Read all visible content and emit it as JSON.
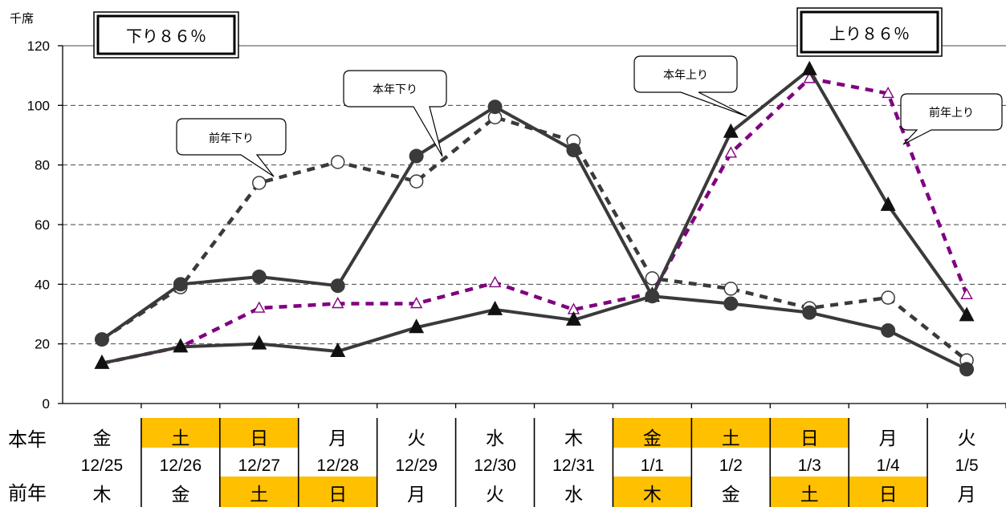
{
  "chart_data": {
    "type": "line",
    "y_unit": "千席",
    "ylim": [
      0,
      120
    ],
    "yticks": [
      0,
      20,
      40,
      60,
      80,
      100,
      120
    ],
    "grid": "horizontal dashed",
    "categories": [
      "12/25",
      "12/26",
      "12/27",
      "12/28",
      "12/29",
      "12/30",
      "12/31",
      "1/1",
      "1/2",
      "1/3",
      "1/4",
      "1/5"
    ],
    "series": [
      {
        "name": "本年下り",
        "style": "solid",
        "marker": "filled-circle",
        "color": "#3a3a3a",
        "values": [
          21.5,
          40,
          42.5,
          39.5,
          83,
          99.5,
          85,
          36,
          33.5,
          30.5,
          24.5,
          11.5
        ]
      },
      {
        "name": "前年下り",
        "style": "dashed",
        "marker": "open-circle",
        "color": "#3a3a3a",
        "values": [
          21.5,
          39,
          74,
          81,
          74.5,
          96,
          88,
          42,
          38.5,
          32,
          35.5,
          14.5
        ]
      },
      {
        "name": "本年上り",
        "style": "solid",
        "marker": "filled-triangle",
        "color": "#3a3a3a",
        "values": [
          13.5,
          19,
          20,
          17.5,
          25.5,
          31.5,
          28,
          36,
          91,
          112,
          66.5,
          29.5
        ]
      },
      {
        "name": "前年上り",
        "style": "dashed",
        "marker": "open-triangle",
        "color": "#800080",
        "values": [
          13.5,
          19,
          32,
          33.5,
          33.5,
          40.5,
          31.5,
          37,
          84,
          109,
          104,
          36.5
        ]
      }
    ],
    "summary_boxes": {
      "down": "下り８６％",
      "up": "上り８６％"
    },
    "callouts": {
      "prev_down": "前年下り",
      "this_down": "本年下り",
      "this_up": "本年上り",
      "prev_up": "前年上り"
    }
  },
  "table": {
    "this_year_label": "本年",
    "prev_year_label": "前年",
    "this_year_days": [
      "金",
      "土",
      "日",
      "月",
      "火",
      "水",
      "木",
      "金",
      "土",
      "日",
      "月",
      "火"
    ],
    "prev_year_days": [
      "木",
      "金",
      "土",
      "日",
      "月",
      "火",
      "水",
      "木",
      "金",
      "土",
      "日",
      "月"
    ],
    "this_year_holiday": [
      false,
      true,
      true,
      false,
      false,
      false,
      false,
      true,
      true,
      true,
      false,
      false
    ],
    "prev_year_holiday": [
      false,
      false,
      true,
      true,
      false,
      false,
      false,
      true,
      false,
      true,
      true,
      false
    ],
    "holiday_color": "#ffc000"
  }
}
